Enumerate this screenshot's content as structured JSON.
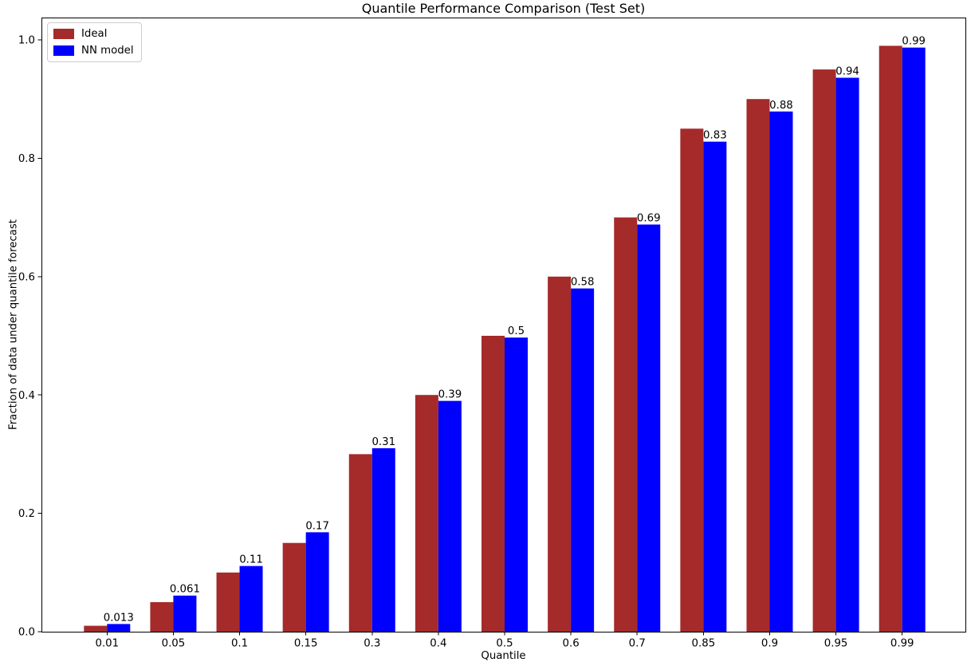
{
  "figure": {
    "title": "Quantile Performance Comparison (Test Set)"
  },
  "axes": {
    "xlabel": "Quantile",
    "ylabel": "Fraction of data under quantile forecast",
    "x_tick_labels": [
      "0.01",
      "0.05",
      "0.1",
      "0.15",
      "0.3",
      "0.4",
      "0.5",
      "0.6",
      "0.7",
      "0.85",
      "0.9",
      "0.95",
      "0.99"
    ],
    "y_tick_labels": [
      "0.0",
      "0.2",
      "0.4",
      "0.6",
      "0.8",
      "1.0"
    ]
  },
  "legend": {
    "items": [
      {
        "label": "Ideal",
        "color": "#A52A2A"
      },
      {
        "label": "NN model",
        "color": "#0000FF"
      }
    ]
  },
  "chart_data": {
    "type": "bar",
    "title": "Quantile Performance Comparison (Test Set)",
    "xlabel": "Quantile",
    "ylabel": "Fraction of data under quantile forecast",
    "categories": [
      "0.01",
      "0.05",
      "0.1",
      "0.15",
      "0.3",
      "0.4",
      "0.5",
      "0.6",
      "0.7",
      "0.85",
      "0.9",
      "0.95",
      "0.99"
    ],
    "series": [
      {
        "name": "Ideal",
        "color": "#A52A2A",
        "values": [
          0.01,
          0.05,
          0.1,
          0.15,
          0.3,
          0.4,
          0.5,
          0.6,
          0.7,
          0.85,
          0.9,
          0.95,
          0.99
        ]
      },
      {
        "name": "NN model",
        "color": "#0000FF",
        "values": [
          0.013,
          0.061,
          0.111,
          0.168,
          0.31,
          0.39,
          0.497,
          0.58,
          0.688,
          0.828,
          0.879,
          0.936,
          0.987
        ],
        "labels": [
          "0.013",
          "0.061",
          "0.11",
          "0.17",
          "0.31",
          "0.39",
          "0.5",
          "0.58",
          "0.69",
          "0.83",
          "0.88",
          "0.94",
          "0.99"
        ]
      }
    ],
    "y_ticks": [
      0.0,
      0.2,
      0.4,
      0.6,
      0.8,
      1.0
    ],
    "ylim": [
      0,
      1.038
    ],
    "grid": false,
    "legend_position": "upper left",
    "bar_value_labels_on": "NN model"
  }
}
